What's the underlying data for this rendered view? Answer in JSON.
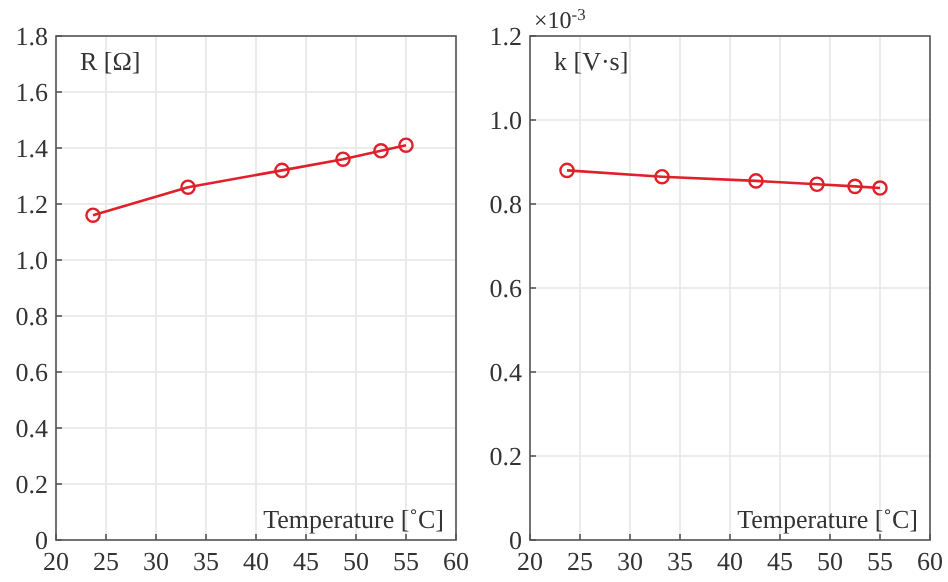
{
  "chart_data": [
    {
      "type": "line",
      "ylabel": "R [Ω]",
      "xlabel": "Temperature [˚C]",
      "x": [
        23.7,
        33.2,
        42.6,
        48.7,
        52.5,
        55.0
      ],
      "series": [
        {
          "color": "#e0202a",
          "values": [
            1.16,
            1.26,
            1.32,
            1.36,
            1.39,
            1.41
          ]
        }
      ],
      "xlim": [
        20,
        60
      ],
      "xticks": [
        20,
        25,
        30,
        35,
        40,
        45,
        50,
        55,
        60
      ],
      "ylim": [
        0,
        1.8
      ],
      "yticks": [
        0,
        0.2,
        0.4,
        0.6,
        0.8,
        {
          "value": 1,
          "label": "1.0"
        },
        1.2,
        1.4,
        1.6,
        1.8
      ],
      "grid": true,
      "marker": "circle",
      "line_style": "solid"
    },
    {
      "type": "line",
      "ylabel": "k [V·s]",
      "xlabel": "Temperature [˚C]",
      "annotations": [
        "×10$^{-3}$"
      ],
      "x": [
        23.7,
        33.2,
        42.6,
        48.7,
        52.5,
        55.0
      ],
      "series": [
        {
          "color": "#e0202a",
          "values": [
            0.88,
            0.865,
            0.855,
            0.847,
            0.842,
            0.838
          ]
        }
      ],
      "xlim": [
        20,
        60
      ],
      "xticks": [
        20,
        25,
        30,
        35,
        40,
        45,
        50,
        55,
        60
      ],
      "ylim": [
        0,
        1.2
      ],
      "yticks": [
        0,
        0.2,
        0.4,
        0.6,
        0.8,
        {
          "value": 1,
          "label": "1.0"
        },
        1.2
      ],
      "grid": true,
      "marker": "circle",
      "line_style": "solid"
    }
  ]
}
